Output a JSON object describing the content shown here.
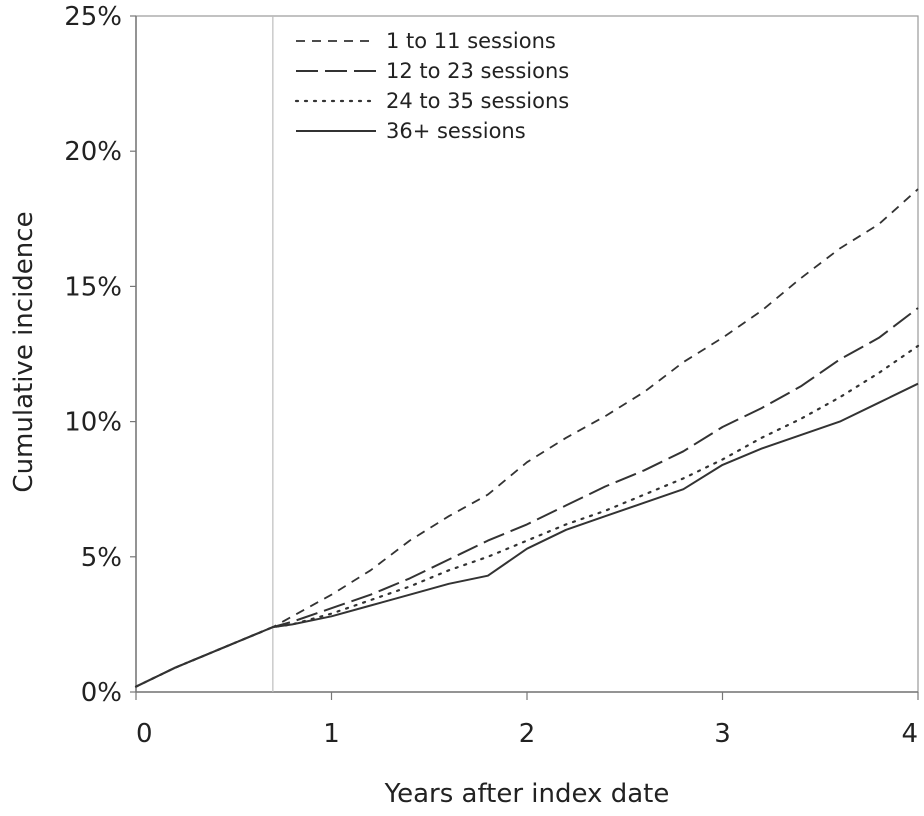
{
  "chart_data": {
    "type": "line",
    "title": "",
    "xlabel": "Years after index date",
    "ylabel": "Cumulative incidence",
    "xlim": [
      0,
      4
    ],
    "ylim": [
      0,
      25
    ],
    "x_ticks": [
      0,
      1,
      2,
      3,
      4
    ],
    "x_tick_labels": [
      "0",
      "1",
      "2",
      "3",
      "4"
    ],
    "y_ticks": [
      0,
      5,
      10,
      15,
      20,
      25
    ],
    "y_tick_labels": [
      "0%",
      "5%",
      "10%",
      "15%",
      "20%",
      "25%"
    ],
    "reference_line_x": 0.7,
    "grid": false,
    "legend_position": "top-left",
    "series": [
      {
        "name": "1 to 11 sessions",
        "dash": "dashed",
        "x": [
          0,
          0.2,
          0.5,
          0.7,
          0.8,
          1.0,
          1.2,
          1.4,
          1.6,
          1.8,
          2.0,
          2.2,
          2.4,
          2.6,
          2.8,
          3.0,
          3.2,
          3.4,
          3.6,
          3.8,
          4.0
        ],
        "y": [
          0.2,
          0.9,
          1.8,
          2.4,
          2.8,
          3.6,
          4.5,
          5.6,
          6.5,
          7.3,
          8.5,
          9.4,
          10.2,
          11.1,
          12.2,
          13.1,
          14.1,
          15.3,
          16.4,
          17.3,
          18.6
        ]
      },
      {
        "name": "12 to 23 sessions",
        "dash": "long-dashed",
        "x": [
          0,
          0.2,
          0.5,
          0.7,
          0.8,
          1.0,
          1.2,
          1.4,
          1.6,
          1.8,
          2.0,
          2.2,
          2.4,
          2.6,
          2.8,
          3.0,
          3.2,
          3.4,
          3.6,
          3.8,
          4.0
        ],
        "y": [
          0.2,
          0.9,
          1.8,
          2.4,
          2.6,
          3.1,
          3.6,
          4.2,
          4.9,
          5.6,
          6.2,
          6.9,
          7.6,
          8.2,
          8.9,
          9.8,
          10.5,
          11.3,
          12.3,
          13.1,
          14.2
        ]
      },
      {
        "name": "24 to 35 sessions",
        "dash": "dotted",
        "x": [
          0,
          0.2,
          0.5,
          0.7,
          0.8,
          1.0,
          1.2,
          1.4,
          1.6,
          1.8,
          2.0,
          2.2,
          2.4,
          2.6,
          2.8,
          3.0,
          3.2,
          3.4,
          3.6,
          3.8,
          4.0
        ],
        "y": [
          0.2,
          0.9,
          1.8,
          2.4,
          2.5,
          2.9,
          3.4,
          3.9,
          4.5,
          5.0,
          5.6,
          6.2,
          6.7,
          7.3,
          7.9,
          8.6,
          9.4,
          10.1,
          10.9,
          11.8,
          12.8
        ]
      },
      {
        "name": "36+ sessions",
        "dash": "solid",
        "x": [
          0,
          0.2,
          0.5,
          0.7,
          0.8,
          1.0,
          1.2,
          1.4,
          1.6,
          1.8,
          2.0,
          2.2,
          2.4,
          2.6,
          2.8,
          3.0,
          3.2,
          3.4,
          3.6,
          3.8,
          4.0
        ],
        "y": [
          0.2,
          0.9,
          1.8,
          2.4,
          2.5,
          2.8,
          3.2,
          3.6,
          4.0,
          4.3,
          5.3,
          6.0,
          6.5,
          7.0,
          7.5,
          8.4,
          9.0,
          9.5,
          10.0,
          10.7,
          11.4
        ]
      }
    ]
  }
}
